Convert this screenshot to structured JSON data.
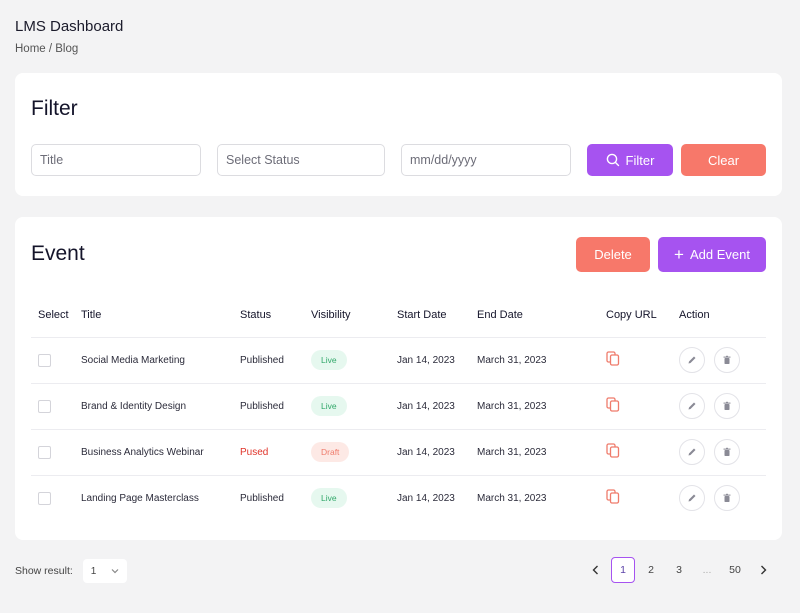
{
  "header": {
    "title": "LMS Dashboard",
    "breadcrumb": "Home / Blog"
  },
  "filter": {
    "title": "Filter",
    "title_placeholder": "Title",
    "status_placeholder": "Select Status",
    "date_placeholder": "mm/dd/yyyy",
    "filter_button": "Filter",
    "clear_button": "Clear"
  },
  "events": {
    "title": "Event",
    "delete_button": "Delete",
    "add_button": "Add Event",
    "columns": [
      "Select",
      "Title",
      "Status",
      "Visibility",
      "Start Date",
      "End Date",
      "Copy URL",
      "Action"
    ],
    "rows": [
      {
        "title": "Social Media Marketing",
        "status": "Published",
        "visibility": "Live",
        "start": "Jan 14, 2023",
        "end": "March 31, 2023"
      },
      {
        "title": "Brand & Identity Design",
        "status": "Published",
        "visibility": "Live",
        "start": "Jan 14, 2023",
        "end": "March 31, 2023"
      },
      {
        "title": "Business Analytics Webinar",
        "status": "Pused",
        "visibility": "Draft",
        "start": "Jan 14, 2023",
        "end": "March 31, 2023"
      },
      {
        "title": "Landing Page Masterclass",
        "status": "Published",
        "visibility": "Live",
        "start": "Jan 14, 2023",
        "end": "March 31, 2023"
      }
    ]
  },
  "footer": {
    "show_result_label": "Show result:",
    "page_size": "1",
    "pages": [
      "1",
      "2",
      "3",
      "...",
      "50"
    ],
    "current_page": "1"
  },
  "colors": {
    "purple": "#a653f0",
    "red": "#f7786a",
    "live": "#31a86a",
    "draft": "#ef7b6b"
  }
}
